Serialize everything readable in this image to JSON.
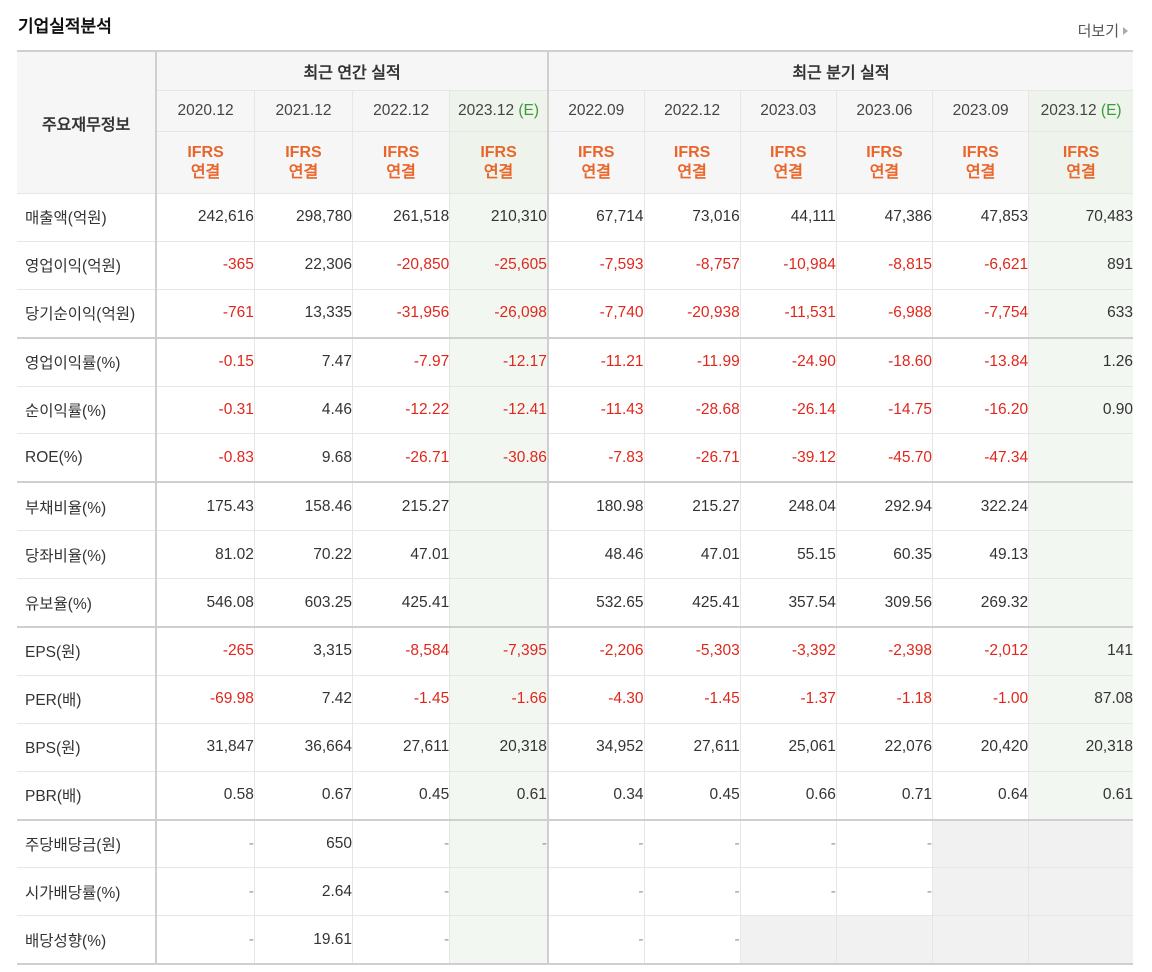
{
  "header": {
    "title": "기업실적분석",
    "more_label": "더보기"
  },
  "table": {
    "label_header": "주요재무정보",
    "groups": {
      "annual": "최근 연간 실적",
      "quarter": "최근 분기 실적"
    },
    "periods": [
      {
        "date": "2020.12",
        "est": ""
      },
      {
        "date": "2021.12",
        "est": ""
      },
      {
        "date": "2022.12",
        "est": ""
      },
      {
        "date": "2023.12",
        "est": "(E)"
      },
      {
        "date": "2022.09",
        "est": ""
      },
      {
        "date": "2022.12",
        "est": ""
      },
      {
        "date": "2023.03",
        "est": ""
      },
      {
        "date": "2023.06",
        "est": ""
      },
      {
        "date": "2023.09",
        "est": ""
      },
      {
        "date": "2023.12",
        "est": "(E)"
      }
    ],
    "basis": {
      "line1": "IFRS",
      "line2": "연결"
    },
    "rows": [
      {
        "label": "매출액(억원)",
        "values": [
          "242,616",
          "298,780",
          "261,518",
          "210,310",
          "67,714",
          "73,016",
          "44,111",
          "47,386",
          "47,853",
          "70,483"
        ]
      },
      {
        "label": "영업이익(억원)",
        "values": [
          "-365",
          "22,306",
          "-20,850",
          "-25,605",
          "-7,593",
          "-8,757",
          "-10,984",
          "-8,815",
          "-6,621",
          "891"
        ]
      },
      {
        "label": "당기순이익(억원)",
        "values": [
          "-761",
          "13,335",
          "-31,956",
          "-26,098",
          "-7,740",
          "-20,938",
          "-11,531",
          "-6,988",
          "-7,754",
          "633"
        ]
      },
      {
        "label": "영업이익률(%)",
        "values": [
          "-0.15",
          "7.47",
          "-7.97",
          "-12.17",
          "-11.21",
          "-11.99",
          "-24.90",
          "-18.60",
          "-13.84",
          "1.26"
        ]
      },
      {
        "label": "순이익률(%)",
        "values": [
          "-0.31",
          "4.46",
          "-12.22",
          "-12.41",
          "-11.43",
          "-28.68",
          "-26.14",
          "-14.75",
          "-16.20",
          "0.90"
        ]
      },
      {
        "label": "ROE(%)",
        "values": [
          "-0.83",
          "9.68",
          "-26.71",
          "-30.86",
          "-7.83",
          "-26.71",
          "-39.12",
          "-45.70",
          "-47.34",
          ""
        ]
      },
      {
        "label": "부채비율(%)",
        "values": [
          "175.43",
          "158.46",
          "215.27",
          "",
          "180.98",
          "215.27",
          "248.04",
          "292.94",
          "322.24",
          ""
        ]
      },
      {
        "label": "당좌비율(%)",
        "values": [
          "81.02",
          "70.22",
          "47.01",
          "",
          "48.46",
          "47.01",
          "55.15",
          "60.35",
          "49.13",
          ""
        ]
      },
      {
        "label": "유보율(%)",
        "values": [
          "546.08",
          "603.25",
          "425.41",
          "",
          "532.65",
          "425.41",
          "357.54",
          "309.56",
          "269.32",
          ""
        ]
      },
      {
        "label": "EPS(원)",
        "values": [
          "-265",
          "3,315",
          "-8,584",
          "-7,395",
          "-2,206",
          "-5,303",
          "-3,392",
          "-2,398",
          "-2,012",
          "141"
        ]
      },
      {
        "label": "PER(배)",
        "values": [
          "-69.98",
          "7.42",
          "-1.45",
          "-1.66",
          "-4.30",
          "-1.45",
          "-1.37",
          "-1.18",
          "-1.00",
          "87.08"
        ]
      },
      {
        "label": "BPS(원)",
        "values": [
          "31,847",
          "36,664",
          "27,611",
          "20,318",
          "34,952",
          "27,611",
          "25,061",
          "22,076",
          "20,420",
          "20,318"
        ]
      },
      {
        "label": "PBR(배)",
        "values": [
          "0.58",
          "0.67",
          "0.45",
          "0.61",
          "0.34",
          "0.45",
          "0.66",
          "0.71",
          "0.64",
          "0.61"
        ]
      },
      {
        "label": "주당배당금(원)",
        "values": [
          "-",
          "650",
          "-",
          "-",
          "-",
          "-",
          "-",
          "-",
          "",
          ""
        ]
      },
      {
        "label": "시가배당률(%)",
        "values": [
          "-",
          "2.64",
          "-",
          "",
          "-",
          "-",
          "-",
          "-",
          "",
          ""
        ]
      },
      {
        "label": "배당성향(%)",
        "values": [
          "-",
          "19.61",
          "-",
          "",
          "-",
          "-",
          "",
          "",
          "",
          ""
        ]
      }
    ]
  }
}
